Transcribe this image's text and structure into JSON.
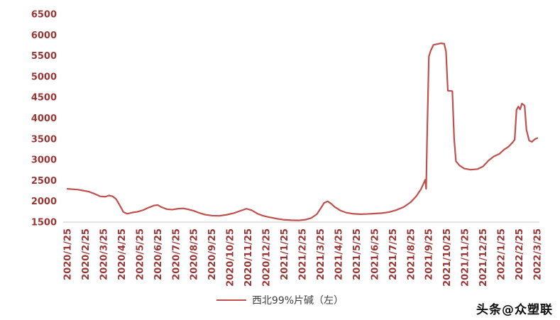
{
  "watermark": "头条@众塑联",
  "legend": {
    "label": "西北99%片碱（左）"
  },
  "colors": {
    "line": "#C0504D",
    "axis_label": "#963735",
    "legend_text": "#3f3f3f",
    "axis_line": "#c9c9c9",
    "watermark": "#0f0f0f"
  },
  "chart_data": {
    "type": "line",
    "title": "",
    "xlabel": "",
    "ylabel": "",
    "grid": false,
    "legend_position": "bottom",
    "ylim": [
      1500,
      6500
    ],
    "y_ticks": [
      1500,
      2000,
      2500,
      3000,
      3500,
      4000,
      4500,
      5000,
      5500,
      6000,
      6500
    ],
    "x_tick_labels": [
      "2020/1/25",
      "2020/2/25",
      "2020/3/25",
      "2020/4/25",
      "2020/5/25",
      "2020/6/25",
      "2020/7/25",
      "2020/8/25",
      "2020/9/25",
      "2020/10/25",
      "2020/11/25",
      "2020/12/25",
      "2021/1/25",
      "2021/2/25",
      "2021/3/25",
      "2021/4/25",
      "2021/5/25",
      "2021/6/25",
      "2021/7/25",
      "2021/8/25",
      "2021/9/25",
      "2021/10/25",
      "2021/11/25",
      "2021/12/25",
      "2022/1/25",
      "2022/2/25",
      "2022/3/25"
    ],
    "series": [
      {
        "name": "西北99%片碱（左）",
        "points": [
          [
            0,
            2300
          ],
          [
            0.3,
            2290
          ],
          [
            0.6,
            2280
          ],
          [
            0.9,
            2255
          ],
          [
            1.2,
            2230
          ],
          [
            1.5,
            2180
          ],
          [
            1.8,
            2120
          ],
          [
            2.1,
            2110
          ],
          [
            2.3,
            2140
          ],
          [
            2.5,
            2120
          ],
          [
            2.7,
            2050
          ],
          [
            2.9,
            1900
          ],
          [
            3.1,
            1740
          ],
          [
            3.3,
            1700
          ],
          [
            3.6,
            1730
          ],
          [
            3.9,
            1750
          ],
          [
            4.2,
            1790
          ],
          [
            4.5,
            1850
          ],
          [
            4.8,
            1900
          ],
          [
            5.0,
            1910
          ],
          [
            5.2,
            1860
          ],
          [
            5.5,
            1810
          ],
          [
            5.8,
            1800
          ],
          [
            6.1,
            1820
          ],
          [
            6.4,
            1830
          ],
          [
            6.7,
            1805
          ],
          [
            7.0,
            1770
          ],
          [
            7.3,
            1720
          ],
          [
            7.6,
            1680
          ],
          [
            8.0,
            1655
          ],
          [
            8.4,
            1650
          ],
          [
            8.8,
            1675
          ],
          [
            9.2,
            1715
          ],
          [
            9.6,
            1775
          ],
          [
            9.9,
            1820
          ],
          [
            10.2,
            1785
          ],
          [
            10.5,
            1705
          ],
          [
            10.8,
            1655
          ],
          [
            11.2,
            1615
          ],
          [
            11.6,
            1580
          ],
          [
            12.0,
            1555
          ],
          [
            12.4,
            1545
          ],
          [
            12.8,
            1540
          ],
          [
            13.2,
            1560
          ],
          [
            13.5,
            1600
          ],
          [
            13.8,
            1690
          ],
          [
            14.0,
            1820
          ],
          [
            14.2,
            1960
          ],
          [
            14.4,
            2000
          ],
          [
            14.6,
            1940
          ],
          [
            14.8,
            1860
          ],
          [
            15.1,
            1780
          ],
          [
            15.4,
            1730
          ],
          [
            15.8,
            1700
          ],
          [
            16.2,
            1690
          ],
          [
            16.6,
            1695
          ],
          [
            17.0,
            1705
          ],
          [
            17.4,
            1715
          ],
          [
            17.8,
            1740
          ],
          [
            18.2,
            1790
          ],
          [
            18.6,
            1860
          ],
          [
            19.0,
            1980
          ],
          [
            19.3,
            2120
          ],
          [
            19.55,
            2280
          ],
          [
            19.7,
            2420
          ],
          [
            19.8,
            2520
          ],
          [
            19.85,
            2300
          ],
          [
            19.9,
            3480
          ],
          [
            20.0,
            5480
          ],
          [
            20.1,
            5620
          ],
          [
            20.25,
            5760
          ],
          [
            20.45,
            5780
          ],
          [
            20.65,
            5800
          ],
          [
            20.85,
            5790
          ],
          [
            20.95,
            5600
          ],
          [
            21.05,
            4660
          ],
          [
            21.3,
            4650
          ],
          [
            21.4,
            3500
          ],
          [
            21.5,
            2960
          ],
          [
            21.7,
            2860
          ],
          [
            21.95,
            2790
          ],
          [
            22.3,
            2760
          ],
          [
            22.7,
            2775
          ],
          [
            23.0,
            2840
          ],
          [
            23.3,
            2980
          ],
          [
            23.6,
            3080
          ],
          [
            23.9,
            3140
          ],
          [
            24.15,
            3240
          ],
          [
            24.4,
            3310
          ],
          [
            24.6,
            3400
          ],
          [
            24.75,
            3480
          ],
          [
            24.85,
            4200
          ],
          [
            24.95,
            4280
          ],
          [
            25.05,
            4210
          ],
          [
            25.15,
            4350
          ],
          [
            25.3,
            4300
          ],
          [
            25.4,
            3720
          ],
          [
            25.55,
            3460
          ],
          [
            25.7,
            3430
          ],
          [
            25.85,
            3490
          ],
          [
            26,
            3520
          ]
        ]
      }
    ]
  }
}
